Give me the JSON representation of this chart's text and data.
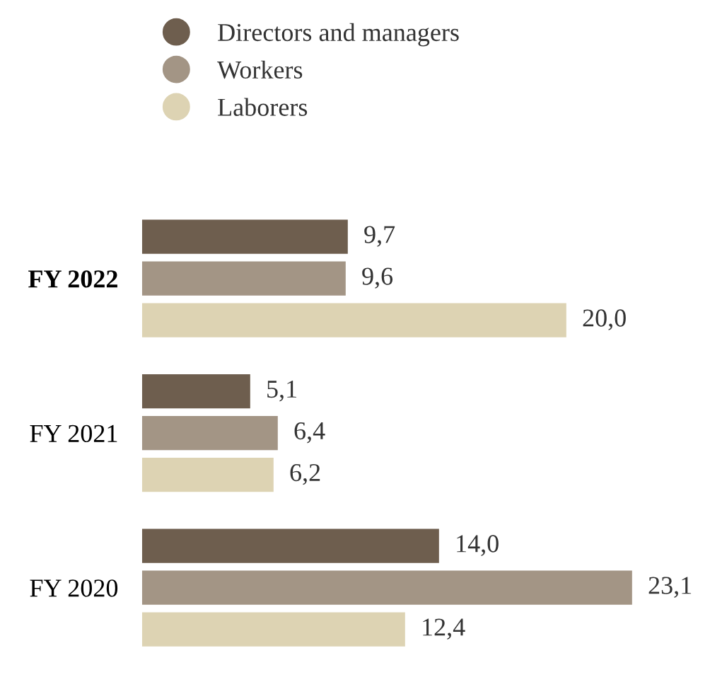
{
  "chart_data": {
    "type": "bar",
    "orientation": "horizontal",
    "categories": [
      "FY 2022",
      "FY 2021",
      "FY 2020"
    ],
    "series": [
      {
        "name": "Directors and managers",
        "color": "#6e5e4e",
        "values": [
          9.7,
          5.1,
          14.0
        ],
        "value_labels": [
          "9,7",
          "5,1",
          "14,0"
        ]
      },
      {
        "name": "Workers",
        "color": "#a39585",
        "values": [
          9.6,
          6.4,
          23.1
        ],
        "value_labels": [
          "9,6",
          "6,4",
          "23,1"
        ]
      },
      {
        "name": "Laborers",
        "color": "#ddd3b3",
        "values": [
          20.0,
          6.2,
          12.4
        ],
        "value_labels": [
          "20,0",
          "6,2",
          "12,4"
        ]
      }
    ],
    "legend": "top left",
    "grid": false
  }
}
